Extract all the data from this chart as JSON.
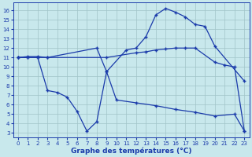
{
  "xlabel": "Graphe des températures (°C)",
  "background_color": "#c8e8ec",
  "line_color": "#1a3aaa",
  "grid_color": "#a0c4c8",
  "x_ticks": [
    0,
    1,
    2,
    3,
    4,
    5,
    6,
    7,
    8,
    9,
    10,
    11,
    12,
    13,
    14,
    15,
    16,
    17,
    18,
    19,
    20,
    21,
    22,
    23
  ],
  "y_ticks": [
    3,
    4,
    5,
    6,
    7,
    8,
    9,
    10,
    11,
    12,
    13,
    14,
    15,
    16
  ],
  "ylim": [
    2.5,
    16.8
  ],
  "xlim": [
    -0.5,
    23.5
  ],
  "curve_top": {
    "x": [
      0,
      1,
      2,
      3,
      8,
      9,
      11,
      12,
      13,
      14,
      15,
      16,
      17,
      18,
      19,
      20,
      23
    ],
    "y": [
      11,
      11.1,
      11.1,
      11.0,
      12.0,
      9.5,
      11.8,
      12.0,
      13.2,
      15.5,
      16.2,
      15.8,
      15.3,
      14.5,
      14.3,
      12.2,
      8.5
    ]
  },
  "curve_mid": {
    "x": [
      0,
      1,
      2,
      3,
      9,
      12,
      13,
      14,
      15,
      16,
      17,
      18,
      20,
      21,
      22,
      23
    ],
    "y": [
      11,
      11,
      11,
      11,
      11,
      11.5,
      11.6,
      11.8,
      11.9,
      12.0,
      12.0,
      12.0,
      10.5,
      10.2,
      10.0,
      3.2
    ]
  },
  "curve_bot": {
    "x": [
      0,
      1,
      2,
      3,
      4,
      5,
      6,
      7,
      8,
      9,
      10,
      12,
      14,
      16,
      18,
      20,
      22,
      23
    ],
    "y": [
      11,
      11,
      11,
      7.5,
      7.3,
      6.8,
      5.3,
      3.2,
      4.2,
      9.5,
      6.5,
      6.2,
      5.9,
      5.5,
      5.2,
      4.8,
      5.0,
      3.2
    ]
  }
}
